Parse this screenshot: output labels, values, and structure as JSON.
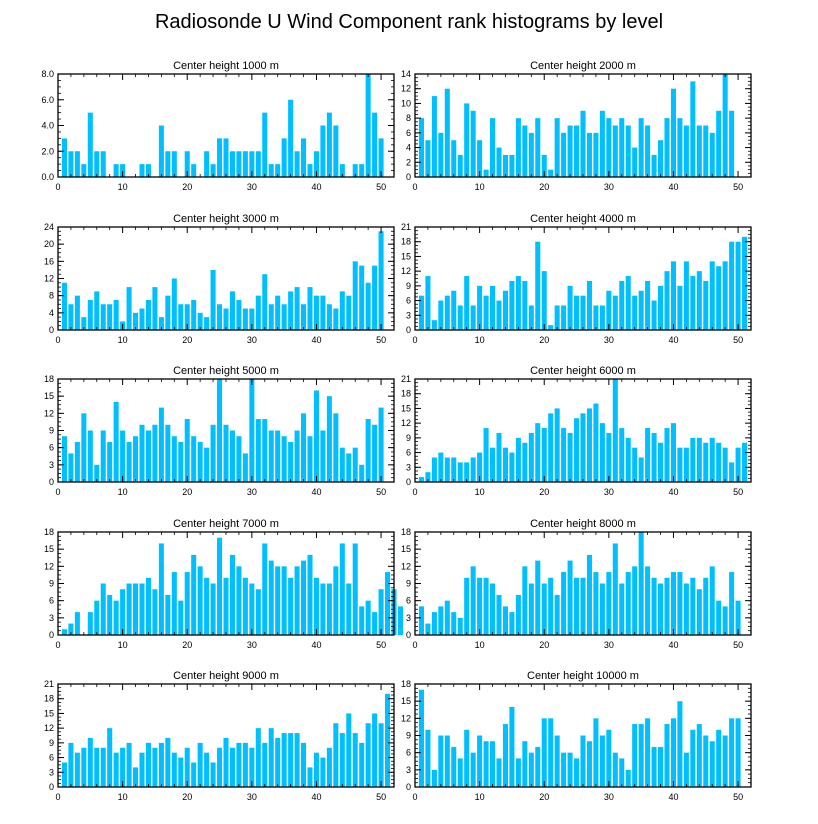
{
  "title": "Radiosonde U Wind Component rank histograms by level",
  "colors": {
    "bar": "#00bfff",
    "axis": "#000000"
  },
  "chart_data": [
    {
      "type": "bar",
      "title": "Center height 1000 m",
      "xlim": [
        0,
        52
      ],
      "ylim": [
        0,
        8
      ],
      "xticks": [
        0,
        10,
        20,
        30,
        40,
        50
      ],
      "yticks": [
        0,
        2,
        4,
        6,
        8
      ],
      "ytick_labels": [
        "0.0",
        "2.0",
        "4.0",
        "6.0",
        "8.0"
      ],
      "values": [
        3,
        2,
        2,
        1,
        5,
        2,
        2,
        0,
        1,
        1,
        0,
        0,
        1,
        1,
        0,
        4,
        2,
        2,
        0,
        2,
        1,
        0,
        2,
        1,
        3,
        3,
        2,
        2,
        2,
        2,
        2,
        5,
        1,
        1,
        3,
        6,
        2,
        3,
        1,
        2,
        4,
        5,
        4,
        1,
        0,
        1,
        1,
        8,
        5,
        3
      ]
    },
    {
      "type": "bar",
      "title": "Center height 2000 m",
      "xlim": [
        0,
        52
      ],
      "ylim": [
        0,
        14
      ],
      "xticks": [
        0,
        10,
        20,
        30,
        40,
        50
      ],
      "yticks": [
        0,
        2,
        4,
        6,
        8,
        10,
        12,
        14
      ],
      "ytick_labels": [
        "0",
        "2",
        "4",
        "6",
        "8",
        "10",
        "12",
        "14"
      ],
      "values": [
        8,
        5,
        11,
        6,
        12,
        5,
        3,
        10,
        9,
        5,
        1,
        8,
        4,
        3,
        3,
        8,
        7,
        6,
        8,
        3,
        1,
        8,
        6,
        7,
        7,
        9,
        6,
        6,
        9,
        8,
        7,
        8,
        7,
        4,
        8,
        7,
        3,
        5,
        8,
        12,
        8,
        7,
        13,
        7,
        7,
        6,
        9,
        14,
        9
      ]
    },
    {
      "type": "bar",
      "title": "Center height 3000 m",
      "xlim": [
        0,
        52
      ],
      "ylim": [
        0,
        24
      ],
      "xticks": [
        0,
        10,
        20,
        30,
        40,
        50
      ],
      "yticks": [
        0,
        4,
        8,
        12,
        16,
        20,
        24
      ],
      "ytick_labels": [
        "0",
        "4",
        "8",
        "12",
        "16",
        "20",
        "24"
      ],
      "values": [
        11,
        6,
        8,
        3,
        7,
        9,
        6,
        6,
        7,
        2,
        10,
        4,
        5,
        7,
        10,
        3,
        8,
        12,
        6,
        6,
        7,
        4,
        3,
        14,
        6,
        5,
        9,
        7,
        5,
        5,
        8,
        13,
        6,
        8,
        6,
        9,
        10,
        6,
        10,
        8,
        8,
        6,
        5,
        9,
        8,
        16,
        15,
        11,
        15,
        23
      ]
    },
    {
      "type": "bar",
      "title": "Center height 4000 m",
      "xlim": [
        0,
        52
      ],
      "ylim": [
        0,
        21
      ],
      "xticks": [
        0,
        10,
        20,
        30,
        40,
        50
      ],
      "yticks": [
        0,
        3,
        6,
        9,
        12,
        15,
        18,
        21
      ],
      "ytick_labels": [
        "0",
        "3",
        "6",
        "9",
        "12",
        "15",
        "18",
        "21"
      ],
      "values": [
        7,
        11,
        2,
        6,
        7,
        8,
        5,
        11,
        5,
        9,
        7,
        9,
        6,
        8,
        10,
        11,
        10,
        5,
        18,
        12,
        1,
        5,
        5,
        9,
        7,
        7,
        10,
        5,
        5,
        8,
        7,
        10,
        11,
        7,
        8,
        10,
        6,
        9,
        12,
        14,
        9,
        14,
        11,
        12,
        10,
        14,
        13,
        14,
        18,
        18,
        19
      ]
    },
    {
      "type": "bar",
      "title": "Center height 5000 m",
      "xlim": [
        0,
        52
      ],
      "ylim": [
        0,
        18
      ],
      "xticks": [
        0,
        10,
        20,
        30,
        40,
        50
      ],
      "yticks": [
        0,
        3,
        6,
        9,
        12,
        15,
        18
      ],
      "ytick_labels": [
        "0",
        "3",
        "6",
        "9",
        "12",
        "15",
        "18"
      ],
      "values": [
        8,
        5,
        7,
        12,
        9,
        3,
        9,
        7,
        14,
        9,
        7,
        8,
        10,
        9,
        10,
        13,
        10,
        8,
        7,
        11,
        8,
        7,
        6,
        10,
        18,
        10,
        9,
        8,
        5,
        18,
        11,
        11,
        9,
        9,
        8,
        7,
        9,
        12,
        8,
        16,
        9,
        15,
        12,
        6,
        5,
        6,
        3,
        11,
        10,
        13
      ]
    },
    {
      "type": "bar",
      "title": "Center height 6000 m",
      "xlim": [
        0,
        52
      ],
      "ylim": [
        0,
        21
      ],
      "xticks": [
        0,
        10,
        20,
        30,
        40,
        50
      ],
      "yticks": [
        0,
        3,
        6,
        9,
        12,
        15,
        18,
        21
      ],
      "ytick_labels": [
        "0",
        "3",
        "6",
        "9",
        "12",
        "15",
        "18",
        "21"
      ],
      "values": [
        1,
        2,
        5,
        6,
        5,
        5,
        4,
        4,
        5,
        6,
        11,
        7,
        10,
        7,
        6,
        9,
        8,
        10,
        12,
        11,
        14,
        15,
        11,
        10,
        13,
        14,
        15,
        16,
        12,
        10,
        21,
        11,
        9,
        7,
        5,
        11,
        10,
        8,
        11,
        12,
        7,
        7,
        9,
        9,
        8,
        9,
        8,
        7,
        4,
        7,
        8
      ]
    },
    {
      "type": "bar",
      "title": "Center height 7000 m",
      "xlim": [
        0,
        52
      ],
      "ylim": [
        0,
        18
      ],
      "xticks": [
        0,
        10,
        20,
        30,
        40,
        50
      ],
      "yticks": [
        0,
        3,
        6,
        9,
        12,
        15,
        18
      ],
      "ytick_labels": [
        "0",
        "3",
        "6",
        "9",
        "12",
        "15",
        "18"
      ],
      "values": [
        1,
        2,
        4,
        0,
        4,
        6,
        9,
        7,
        6,
        8,
        9,
        9,
        9,
        10,
        8,
        16,
        7,
        11,
        6,
        11,
        14,
        12,
        10,
        9,
        17,
        10,
        14,
        12,
        10,
        9,
        8,
        16,
        13,
        12,
        12,
        10,
        12,
        13,
        14,
        10,
        9,
        9,
        12,
        16,
        9,
        16,
        5,
        6,
        4,
        8,
        11,
        8,
        5
      ]
    },
    {
      "type": "bar",
      "title": "Center height 8000 m",
      "xlim": [
        0,
        52
      ],
      "ylim": [
        0,
        18
      ],
      "xticks": [
        0,
        10,
        20,
        30,
        40,
        50
      ],
      "yticks": [
        0,
        3,
        6,
        9,
        12,
        15,
        18
      ],
      "ytick_labels": [
        "0",
        "3",
        "6",
        "9",
        "12",
        "15",
        "18"
      ],
      "values": [
        5,
        2,
        4,
        5,
        6,
        4,
        3,
        10,
        12,
        10,
        10,
        9,
        7,
        5,
        4,
        7,
        12,
        9,
        13,
        9,
        10,
        7,
        11,
        13,
        10,
        10,
        14,
        11,
        9,
        11,
        16,
        9,
        11,
        12,
        18,
        12,
        10,
        9,
        10,
        11,
        11,
        9,
        10,
        8,
        10,
        12,
        6,
        5,
        11,
        6
      ]
    },
    {
      "type": "bar",
      "title": "Center height 9000 m",
      "xlim": [
        0,
        52
      ],
      "ylim": [
        0,
        21
      ],
      "xticks": [
        0,
        10,
        20,
        30,
        40,
        50
      ],
      "yticks": [
        0,
        3,
        6,
        9,
        12,
        15,
        18,
        21
      ],
      "ytick_labels": [
        "0",
        "3",
        "6",
        "9",
        "12",
        "15",
        "18",
        "21"
      ],
      "values": [
        5,
        9,
        7,
        8,
        10,
        8,
        8,
        12,
        7,
        8,
        9,
        4,
        7,
        9,
        8,
        9,
        10,
        7,
        6,
        8,
        5,
        9,
        7,
        5,
        8,
        10,
        8,
        9,
        9,
        8,
        12,
        9,
        12,
        10,
        11,
        11,
        11,
        9,
        4,
        7,
        6,
        8,
        13,
        11,
        15,
        11,
        9,
        13,
        15,
        13,
        19
      ]
    },
    {
      "type": "bar",
      "title": "Center height 10000 m",
      "xlim": [
        0,
        52
      ],
      "ylim": [
        0,
        18
      ],
      "xticks": [
        0,
        10,
        20,
        30,
        40,
        50
      ],
      "yticks": [
        0,
        3,
        6,
        9,
        12,
        15,
        18
      ],
      "ytick_labels": [
        "0",
        "3",
        "6",
        "9",
        "12",
        "15",
        "18"
      ],
      "values": [
        17,
        10,
        3,
        9,
        9,
        7,
        5,
        10,
        6,
        9,
        8,
        8,
        5,
        11,
        14,
        5,
        8,
        6,
        7,
        12,
        12,
        9,
        6,
        6,
        5,
        9,
        8,
        12,
        9,
        10,
        6,
        5,
        3,
        11,
        11,
        12,
        7,
        7,
        11,
        12,
        15,
        6,
        10,
        11,
        9,
        8,
        10,
        9,
        12,
        12
      ]
    }
  ]
}
